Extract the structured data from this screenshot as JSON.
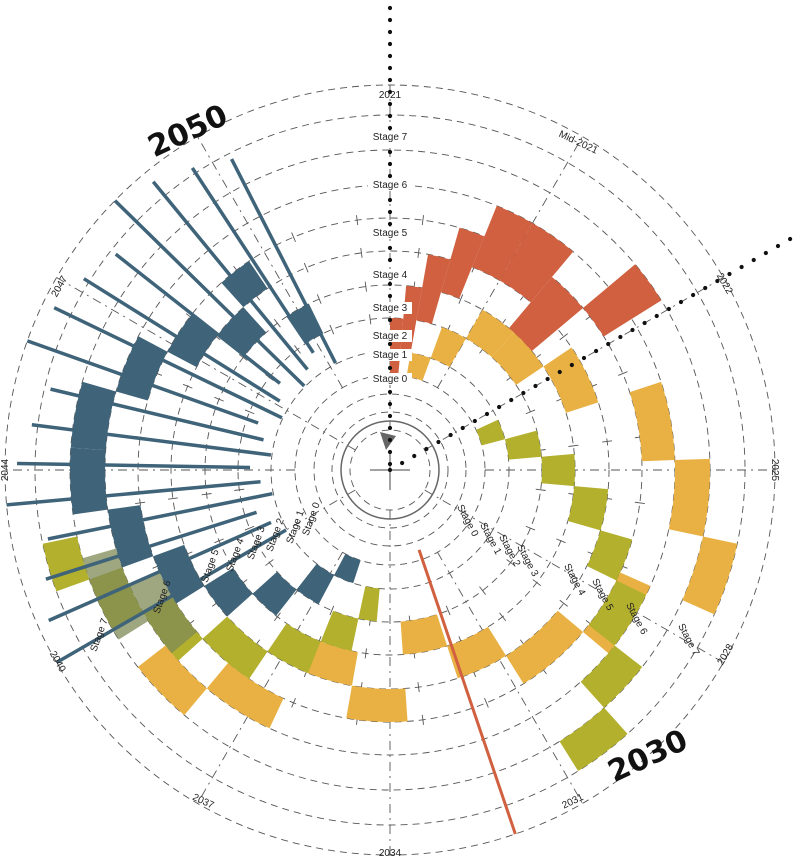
{
  "years": [
    "2021",
    "Mid-2021",
    "2022",
    "2025",
    "2028",
    "2031",
    "2034",
    "2037",
    "2040",
    "2044",
    "2047"
  ],
  "stages_vertical": [
    "Stage 7",
    "Stage 6",
    "Stage 5",
    "Stage 4",
    "Stage 3",
    "Stage 2",
    "Stage 1",
    "Stage 0"
  ],
  "stages_2030": [
    "Stage 0",
    "Stage 1",
    "Stage 2",
    "Stage 3",
    "Stage 4",
    "Stage 5",
    "Stage 6",
    "Stage 7"
  ],
  "stages_2050": [
    "Stage 0",
    "Stage 1",
    "Stage 2",
    "Stage 3",
    "Stage 4",
    "Stage 5",
    "Stage 6",
    "Stage 7"
  ],
  "milestones": [
    "2050",
    "2030"
  ],
  "colors": {
    "red": "#d0603f",
    "yellow": "#e9b143",
    "olive": "#b3b02d",
    "blue": "#3f6479",
    "overlap": "#7f8a55"
  }
}
